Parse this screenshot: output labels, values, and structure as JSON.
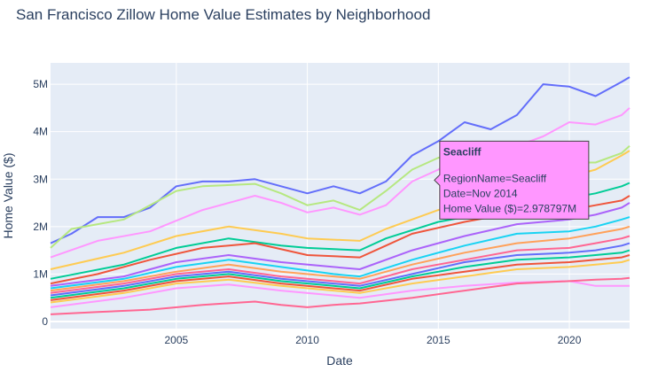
{
  "chart_data": {
    "type": "line",
    "title": "San Francisco Zillow Home Value Estimates by Neighborhood",
    "xlabel": "Date",
    "ylabel": "Home Value ($)",
    "xlim": [
      2000.2,
      2022.3
    ],
    "ylim": [
      -0.15,
      5.45
    ],
    "x_ticks": [
      {
        "value": 2005,
        "label": "2005"
      },
      {
        "value": 2010,
        "label": "2010"
      },
      {
        "value": 2015,
        "label": "2015"
      },
      {
        "value": 2020,
        "label": "2020"
      }
    ],
    "y_ticks": [
      {
        "value": 0,
        "label": "0"
      },
      {
        "value": 1,
        "label": "1M"
      },
      {
        "value": 2,
        "label": "2M"
      },
      {
        "value": 3,
        "label": "3M"
      },
      {
        "value": 4,
        "label": "4M"
      },
      {
        "value": 5,
        "label": "5M"
      }
    ],
    "grid": true,
    "background": "#e5ecf6",
    "series": [
      {
        "color": "#636efa",
        "points": [
          [
            2000.2,
            1.65
          ],
          [
            2001,
            1.85
          ],
          [
            2002,
            2.2
          ],
          [
            2003,
            2.2
          ],
          [
            2004,
            2.4
          ],
          [
            2005,
            2.85
          ],
          [
            2006,
            2.95
          ],
          [
            2007,
            2.95
          ],
          [
            2008,
            3.0
          ],
          [
            2009,
            2.85
          ],
          [
            2010,
            2.7
          ],
          [
            2011,
            2.85
          ],
          [
            2012,
            2.7
          ],
          [
            2013,
            2.95
          ],
          [
            2014,
            3.5
          ],
          [
            2015,
            3.8
          ],
          [
            2016,
            4.2
          ],
          [
            2017,
            4.05
          ],
          [
            2018,
            4.35
          ],
          [
            2019,
            5.0
          ],
          [
            2020,
            4.95
          ],
          [
            2021,
            4.75
          ],
          [
            2022,
            5.05
          ],
          [
            2022.3,
            5.15
          ]
        ]
      },
      {
        "color": "#ff97ff",
        "points": [
          [
            2000.2,
            1.35
          ],
          [
            2002,
            1.7
          ],
          [
            2004,
            1.9
          ],
          [
            2006,
            2.35
          ],
          [
            2008,
            2.65
          ],
          [
            2009,
            2.5
          ],
          [
            2010,
            2.3
          ],
          [
            2011,
            2.4
          ],
          [
            2012,
            2.25
          ],
          [
            2013,
            2.45
          ],
          [
            2014,
            2.95
          ],
          [
            2015,
            3.2
          ],
          [
            2016,
            3.55
          ],
          [
            2017,
            3.45
          ],
          [
            2018,
            3.7
          ],
          [
            2019,
            3.9
          ],
          [
            2020,
            4.2
          ],
          [
            2021,
            4.15
          ],
          [
            2022,
            4.35
          ],
          [
            2022.3,
            4.5
          ]
        ]
      },
      {
        "color": "#b6e880",
        "points": [
          [
            2000.2,
            1.55
          ],
          [
            2001,
            1.95
          ],
          [
            2003,
            2.15
          ],
          [
            2005,
            2.75
          ],
          [
            2006,
            2.85
          ],
          [
            2008,
            2.9
          ],
          [
            2009,
            2.7
          ],
          [
            2010,
            2.45
          ],
          [
            2011,
            2.55
          ],
          [
            2012,
            2.35
          ],
          [
            2013,
            2.75
          ],
          [
            2014,
            3.2
          ],
          [
            2015,
            3.45
          ],
          [
            2016,
            3.55
          ],
          [
            2017,
            3.4
          ],
          [
            2018,
            3.55
          ],
          [
            2019,
            3.5
          ],
          [
            2020,
            3.35
          ],
          [
            2021,
            3.35
          ],
          [
            2022,
            3.55
          ],
          [
            2022.3,
            3.7
          ]
        ]
      },
      {
        "color": "#fecb52",
        "points": [
          [
            2000.2,
            1.1
          ],
          [
            2003,
            1.45
          ],
          [
            2005,
            1.8
          ],
          [
            2007,
            2.0
          ],
          [
            2009,
            1.85
          ],
          [
            2010,
            1.75
          ],
          [
            2012,
            1.7
          ],
          [
            2013,
            1.95
          ],
          [
            2015,
            2.35
          ],
          [
            2017,
            2.6
          ],
          [
            2019,
            2.85
          ],
          [
            2020,
            3.05
          ],
          [
            2021,
            3.2
          ],
          [
            2022,
            3.5
          ],
          [
            2022.3,
            3.6
          ]
        ]
      },
      {
        "color": "#00cc96",
        "points": [
          [
            2000.2,
            0.9
          ],
          [
            2003,
            1.2
          ],
          [
            2005,
            1.55
          ],
          [
            2007,
            1.75
          ],
          [
            2009,
            1.6
          ],
          [
            2010,
            1.55
          ],
          [
            2012,
            1.5
          ],
          [
            2013,
            1.75
          ],
          [
            2015,
            2.1
          ],
          [
            2017,
            2.3
          ],
          [
            2019,
            2.5
          ],
          [
            2020,
            2.6
          ],
          [
            2021,
            2.7
          ],
          [
            2022,
            2.85
          ],
          [
            2022.3,
            2.92
          ]
        ]
      },
      {
        "color": "#ef553b",
        "points": [
          [
            2000.2,
            0.8
          ],
          [
            2002,
            1.0
          ],
          [
            2004,
            1.3
          ],
          [
            2006,
            1.55
          ],
          [
            2008,
            1.65
          ],
          [
            2010,
            1.4
          ],
          [
            2012,
            1.35
          ],
          [
            2013,
            1.6
          ],
          [
            2014,
            1.85
          ],
          [
            2016,
            2.1
          ],
          [
            2018,
            2.3
          ],
          [
            2020,
            2.35
          ],
          [
            2021,
            2.45
          ],
          [
            2022,
            2.55
          ],
          [
            2022.3,
            2.65
          ]
        ]
      },
      {
        "color": "#ab63fa",
        "points": [
          [
            2000.2,
            0.75
          ],
          [
            2003,
            0.95
          ],
          [
            2005,
            1.25
          ],
          [
            2007,
            1.4
          ],
          [
            2009,
            1.25
          ],
          [
            2011,
            1.15
          ],
          [
            2012,
            1.1
          ],
          [
            2014,
            1.5
          ],
          [
            2016,
            1.8
          ],
          [
            2018,
            2.05
          ],
          [
            2020,
            2.15
          ],
          [
            2021,
            2.25
          ],
          [
            2022,
            2.4
          ],
          [
            2022.3,
            2.5
          ]
        ]
      },
      {
        "color": "#19d3f3",
        "points": [
          [
            2000.2,
            0.7
          ],
          [
            2003,
            0.9
          ],
          [
            2005,
            1.15
          ],
          [
            2007,
            1.3
          ],
          [
            2009,
            1.15
          ],
          [
            2011,
            1.0
          ],
          [
            2012,
            0.95
          ],
          [
            2014,
            1.3
          ],
          [
            2016,
            1.6
          ],
          [
            2018,
            1.85
          ],
          [
            2020,
            1.9
          ],
          [
            2021,
            2.0
          ],
          [
            2022,
            2.15
          ],
          [
            2022.3,
            2.2
          ]
        ]
      },
      {
        "color": "#ffa15a",
        "points": [
          [
            2000.2,
            0.65
          ],
          [
            2003,
            0.85
          ],
          [
            2005,
            1.05
          ],
          [
            2007,
            1.2
          ],
          [
            2009,
            1.05
          ],
          [
            2011,
            0.95
          ],
          [
            2012,
            0.9
          ],
          [
            2014,
            1.2
          ],
          [
            2016,
            1.45
          ],
          [
            2018,
            1.65
          ],
          [
            2020,
            1.75
          ],
          [
            2021,
            1.85
          ],
          [
            2022,
            1.95
          ],
          [
            2022.3,
            2.0
          ]
        ]
      },
      {
        "color": "#ff6692",
        "points": [
          [
            2000.2,
            0.6
          ],
          [
            2003,
            0.8
          ],
          [
            2005,
            1.0
          ],
          [
            2007,
            1.1
          ],
          [
            2009,
            0.95
          ],
          [
            2011,
            0.85
          ],
          [
            2012,
            0.8
          ],
          [
            2014,
            1.1
          ],
          [
            2016,
            1.3
          ],
          [
            2018,
            1.5
          ],
          [
            2020,
            1.55
          ],
          [
            2021,
            1.65
          ],
          [
            2022,
            1.75
          ],
          [
            2022.3,
            1.8
          ]
        ]
      },
      {
        "color": "#636efa",
        "points": [
          [
            2000.2,
            0.55
          ],
          [
            2003,
            0.75
          ],
          [
            2005,
            0.95
          ],
          [
            2007,
            1.05
          ],
          [
            2009,
            0.9
          ],
          [
            2011,
            0.8
          ],
          [
            2012,
            0.75
          ],
          [
            2014,
            1.0
          ],
          [
            2016,
            1.25
          ],
          [
            2018,
            1.4
          ],
          [
            2020,
            1.45
          ],
          [
            2021,
            1.5
          ],
          [
            2022,
            1.6
          ],
          [
            2022.3,
            1.65
          ]
        ]
      },
      {
        "color": "#00cc96",
        "points": [
          [
            2000.2,
            0.5
          ],
          [
            2003,
            0.7
          ],
          [
            2005,
            0.9
          ],
          [
            2007,
            1.0
          ],
          [
            2009,
            0.85
          ],
          [
            2011,
            0.75
          ],
          [
            2012,
            0.7
          ],
          [
            2014,
            0.95
          ],
          [
            2016,
            1.15
          ],
          [
            2018,
            1.3
          ],
          [
            2020,
            1.35
          ],
          [
            2021,
            1.4
          ],
          [
            2022,
            1.45
          ],
          [
            2022.3,
            1.5
          ]
        ]
      },
      {
        "color": "#ef553b",
        "points": [
          [
            2000.2,
            0.45
          ],
          [
            2003,
            0.65
          ],
          [
            2005,
            0.85
          ],
          [
            2007,
            0.95
          ],
          [
            2009,
            0.8
          ],
          [
            2011,
            0.7
          ],
          [
            2012,
            0.65
          ],
          [
            2014,
            0.9
          ],
          [
            2016,
            1.05
          ],
          [
            2018,
            1.2
          ],
          [
            2020,
            1.25
          ],
          [
            2021,
            1.3
          ],
          [
            2022,
            1.35
          ],
          [
            2022.3,
            1.4
          ]
        ]
      },
      {
        "color": "#fecb52",
        "points": [
          [
            2000.2,
            0.4
          ],
          [
            2003,
            0.6
          ],
          [
            2005,
            0.8
          ],
          [
            2007,
            0.88
          ],
          [
            2009,
            0.75
          ],
          [
            2011,
            0.65
          ],
          [
            2012,
            0.6
          ],
          [
            2014,
            0.8
          ],
          [
            2016,
            0.95
          ],
          [
            2018,
            1.1
          ],
          [
            2020,
            1.15
          ],
          [
            2021,
            1.2
          ],
          [
            2022,
            1.25
          ],
          [
            2022.3,
            1.3
          ]
        ]
      },
      {
        "color": "#ff97ff",
        "points": [
          [
            2000.2,
            0.3
          ],
          [
            2003,
            0.5
          ],
          [
            2005,
            0.7
          ],
          [
            2007,
            0.78
          ],
          [
            2009,
            0.65
          ],
          [
            2011,
            0.55
          ],
          [
            2012,
            0.5
          ],
          [
            2014,
            0.65
          ],
          [
            2016,
            0.75
          ],
          [
            2018,
            0.82
          ],
          [
            2020,
            0.85
          ],
          [
            2021,
            0.75
          ],
          [
            2022,
            0.75
          ],
          [
            2022.3,
            0.75
          ]
        ]
      },
      {
        "color": "#ff6692",
        "points": [
          [
            2000.2,
            0.15
          ],
          [
            2002,
            0.2
          ],
          [
            2004,
            0.25
          ],
          [
            2006,
            0.35
          ],
          [
            2008,
            0.42
          ],
          [
            2009,
            0.35
          ],
          [
            2010,
            0.3
          ],
          [
            2011,
            0.35
          ],
          [
            2012,
            0.38
          ],
          [
            2014,
            0.5
          ],
          [
            2016,
            0.65
          ],
          [
            2018,
            0.8
          ],
          [
            2020,
            0.85
          ],
          [
            2021,
            0.88
          ],
          [
            2022,
            0.9
          ],
          [
            2022.3,
            0.92
          ]
        ]
      }
    ],
    "hover_point": {
      "x": 2014.85,
      "y": 2.978797
    },
    "tooltip": {
      "name": "Seacliff",
      "line1": "RegionName=Seacliff",
      "line2": "Date=Nov 2014",
      "line3": "Home Value ($)=2.978797M",
      "fill": "#ff97ff"
    }
  }
}
